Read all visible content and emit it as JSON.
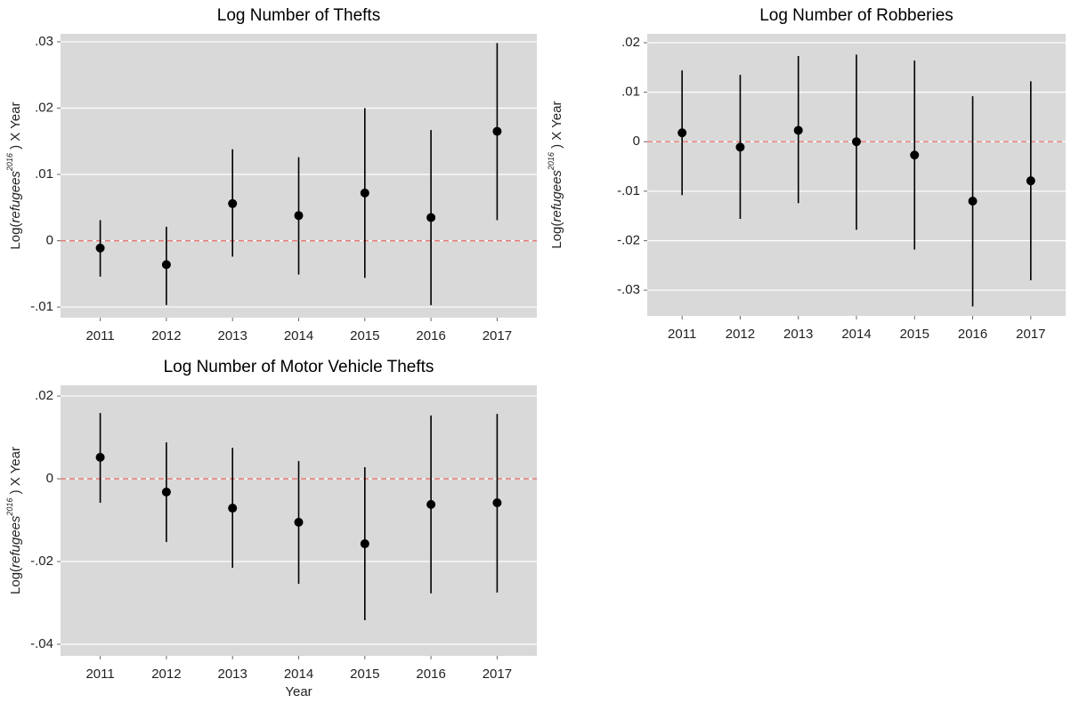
{
  "chart_data": [
    {
      "type": "errorbar",
      "title": "Log Number of Thefts",
      "ylabel": {
        "prefix": "Log(",
        "var": "refugees",
        "sup": "2016",
        "suffix": " ) X Year"
      },
      "categories": [
        "2011",
        "2012",
        "2013",
        "2014",
        "2015",
        "2016",
        "2017"
      ],
      "values": [
        -0.0011,
        -0.0036,
        0.0056,
        0.0038,
        0.0072,
        0.0035,
        0.0165
      ],
      "lower": [
        -0.0054,
        -0.0097,
        -0.0024,
        -0.0051,
        -0.0056,
        -0.0097,
        0.0031
      ],
      "upper": [
        0.0031,
        0.0021,
        0.0138,
        0.0126,
        0.02,
        0.0167,
        0.0298
      ],
      "ylim": [
        -0.0116,
        0.0312
      ],
      "yticks": [
        {
          "value": -0.01,
          "label": "-.01"
        },
        0,
        {
          "value": 0.01,
          "label": ".01"
        },
        {
          "value": 0.02,
          "label": ".02"
        },
        {
          "value": 0.03,
          "label": ".03"
        }
      ],
      "refline": 0,
      "refline_color": "#e8736c",
      "color": "#000000",
      "grid": true
    },
    {
      "type": "errorbar",
      "title": "Log Number of Robberies",
      "ylabel": {
        "prefix": "Log(",
        "var": "refugees",
        "sup": "2016",
        "suffix": " ) X Year"
      },
      "categories": [
        "2011",
        "2012",
        "2013",
        "2014",
        "2015",
        "2016",
        "2017"
      ],
      "values": [
        0.0018,
        -0.0011,
        0.0023,
        0,
        -0.0027,
        -0.012,
        -0.0079
      ],
      "lower": [
        -0.0108,
        -0.0156,
        -0.0124,
        -0.0178,
        -0.0218,
        -0.0333,
        -0.028
      ],
      "upper": [
        0.0144,
        0.0135,
        0.0173,
        0.0176,
        0.0164,
        0.0092,
        0.0122
      ],
      "ylim": [
        -0.0352,
        0.0218
      ],
      "yticks": [
        {
          "value": -0.03,
          "label": "-.03"
        },
        {
          "value": -0.02,
          "label": "-.02"
        },
        {
          "value": -0.01,
          "label": "-.01"
        },
        0,
        {
          "value": 0.01,
          "label": ".01"
        },
        {
          "value": 0.02,
          "label": ".02"
        }
      ],
      "refline": 0,
      "refline_color": "#e8736c",
      "color": "#000000",
      "grid": true
    },
    {
      "type": "errorbar",
      "title": "Log Number of Motor Vehicle Thefts",
      "ylabel": {
        "prefix": "Log(",
        "var": "refugees",
        "sup": "2016",
        "suffix": " ) X Year"
      },
      "xlabel": "Year",
      "categories": [
        "2011",
        "2012",
        "2013",
        "2014",
        "2015",
        "2016",
        "2017"
      ],
      "values": [
        0.0052,
        -0.0032,
        -0.0071,
        -0.0105,
        -0.0157,
        -0.0062,
        -0.0058
      ],
      "lower": [
        -0.0058,
        -0.0153,
        -0.0215,
        -0.0254,
        -0.0342,
        -0.0277,
        -0.0275
      ],
      "upper": [
        0.0159,
        0.0088,
        0.0075,
        0.0043,
        0.0028,
        0.0153,
        0.0157
      ],
      "ylim": [
        -0.0428,
        0.0226
      ],
      "yticks": [
        {
          "value": -0.04,
          "label": "-.04"
        },
        {
          "value": -0.02,
          "label": "-.02"
        },
        0,
        {
          "value": 0.02,
          "label": ".02"
        }
      ],
      "refline": 0,
      "refline_color": "#e8736c",
      "color": "#000000",
      "grid": true
    }
  ]
}
